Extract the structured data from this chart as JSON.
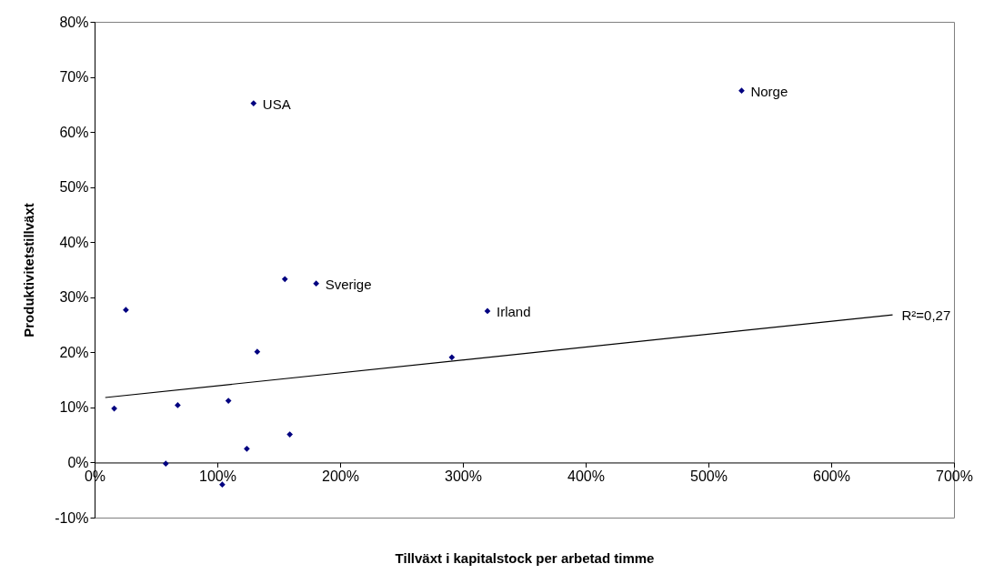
{
  "chart_data": {
    "type": "scatter",
    "xlabel": "Tillväxt i kapitalstock per arbetad timme",
    "ylabel": "Produktivitetstillväxt",
    "xlim": [
      0,
      700
    ],
    "ylim": [
      -10,
      80
    ],
    "xticks": [
      {
        "value": 0,
        "label": "0%"
      },
      {
        "value": 100,
        "label": "100%"
      },
      {
        "value": 200,
        "label": "200%"
      },
      {
        "value": 300,
        "label": "300%"
      },
      {
        "value": 400,
        "label": "400%"
      },
      {
        "value": 500,
        "label": "500%"
      },
      {
        "value": 600,
        "label": "600%"
      },
      {
        "value": 700,
        "label": "700%"
      }
    ],
    "yticks": [
      {
        "value": -10,
        "label": "-10%"
      },
      {
        "value": 0,
        "label": "0%"
      },
      {
        "value": 10,
        "label": "10%"
      },
      {
        "value": 20,
        "label": "20%"
      },
      {
        "value": 30,
        "label": "30%"
      },
      {
        "value": 40,
        "label": "40%"
      },
      {
        "value": 50,
        "label": "50%"
      },
      {
        "value": 60,
        "label": "60%"
      },
      {
        "value": 70,
        "label": "70%"
      },
      {
        "value": 80,
        "label": "80%"
      }
    ],
    "grid": false,
    "legend": false,
    "series": [
      {
        "type": "scatter",
        "marker": "diamond",
        "color": "#000080",
        "x": [
          129.5,
          527,
          180.5,
          320,
          155,
          25.5,
          132.5,
          291,
          16,
          67.7,
          109,
          159,
          124,
          58,
          104
        ],
        "values": [
          65.2,
          67.5,
          32.5,
          27.5,
          33.3,
          27.7,
          20.1,
          19.1,
          9.8,
          10.4,
          11.2,
          5.1,
          2.5,
          -0.2,
          -4
        ]
      },
      {
        "type": "line",
        "color": "#000000",
        "x": [
          8.7,
          650
        ],
        "values": [
          11.8,
          26.8
        ]
      }
    ],
    "annotations": [
      {
        "text": "USA",
        "x": 129.5,
        "y": 65.2
      },
      {
        "text": "Norge",
        "x": 527,
        "y": 67.5
      },
      {
        "text": "Sverige",
        "x": 180.5,
        "y": 32.5
      },
      {
        "text": "Irland",
        "x": 320,
        "y": 27.5
      },
      {
        "text": "R²=0,27",
        "x": 650,
        "y": 26.8
      }
    ]
  }
}
